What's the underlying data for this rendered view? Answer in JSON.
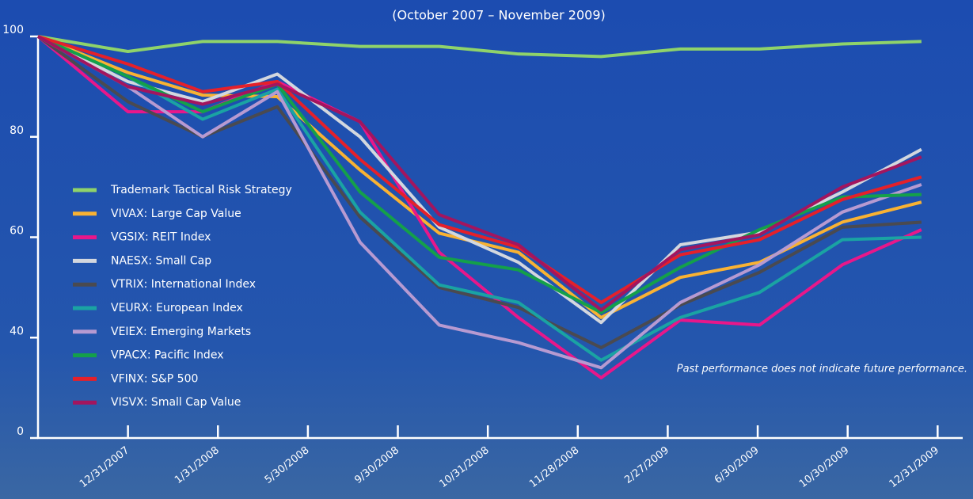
{
  "chart_data": {
    "type": "line",
    "title": "(October 2007 – November 2009)",
    "annotation": "Past performance does not indicate future performance.",
    "x": [
      0,
      1,
      1.83,
      2.66,
      3.58,
      4.46,
      5.34,
      6.26,
      7.14,
      8.02,
      8.94,
      9.82
    ],
    "xlim": [
      0,
      10.27
    ],
    "xticks": [
      {
        "value": 1,
        "label": "12/31/2007"
      },
      {
        "value": 2,
        "label": "1/31/2008"
      },
      {
        "value": 3,
        "label": "5/30/2008"
      },
      {
        "value": 4,
        "label": "9/30/2008"
      },
      {
        "value": 5,
        "label": "10/31/2008"
      },
      {
        "value": 6,
        "label": "11/28/2008"
      },
      {
        "value": 7,
        "label": "2/27/2009"
      },
      {
        "value": 8,
        "label": "6/30/2009"
      },
      {
        "value": 9,
        "label": "10/30/2009"
      },
      {
        "value": 10,
        "label": "12/31/2009"
      }
    ],
    "ylim": [
      20,
      100
    ],
    "yticks": [
      0,
      40,
      60,
      80,
      100
    ],
    "axis_break": true,
    "legend": "left",
    "series": [
      {
        "name": "Trademark Tactical Risk Strategy",
        "color": "#8fd36a",
        "values": [
          100,
          97,
          99,
          99,
          98,
          98,
          96.5,
          96,
          97.5,
          97.5,
          98.5,
          99
        ]
      },
      {
        "name": "VIVAX: Large Cap Value",
        "color": "#f9b233",
        "values": [
          100,
          92.8,
          88.3,
          88,
          73.4,
          60.8,
          57,
          44,
          52,
          55,
          63,
          67
        ]
      },
      {
        "name": "VGSIX: REIT Index",
        "color": "#e8178a",
        "values": [
          100,
          85,
          85,
          91,
          83,
          57,
          44,
          32,
          43.5,
          42.5,
          54.5,
          61.5
        ]
      },
      {
        "name": "NAESX: Small Cap",
        "color": "#d3d7de",
        "values": [
          100,
          91,
          87,
          92.5,
          80,
          62,
          55,
          43,
          58.5,
          61,
          69,
          77.5
        ]
      },
      {
        "name": "VTRIX: International Index",
        "color": "#4a4a50",
        "values": [
          100,
          87,
          80,
          86,
          64,
          50,
          46,
          38,
          46.5,
          53,
          62,
          63
        ]
      },
      {
        "name": "VEURX: European Index",
        "color": "#1aa3a3",
        "values": [
          100,
          92,
          83.5,
          89.5,
          65,
          50.5,
          47,
          35.5,
          44,
          49,
          59.5,
          60
        ]
      },
      {
        "name": "VEIEX: Emerging Markets",
        "color": "#b79ad1",
        "values": [
          100,
          90,
          80,
          89,
          59,
          42.5,
          39,
          34,
          47,
          54.5,
          65,
          70.5
        ]
      },
      {
        "name": "VPACX: Pacific Index",
        "color": "#14a04a",
        "values": [
          100,
          92,
          85,
          90.5,
          69,
          56,
          53.5,
          45,
          54,
          61.5,
          68,
          68.5
        ]
      },
      {
        "name": "VFINX: S&P 500",
        "color": "#e5202a",
        "values": [
          100,
          94.5,
          89,
          91,
          75.5,
          62.5,
          58,
          47,
          56.5,
          59.5,
          67.5,
          72
        ]
      },
      {
        "name": "VISVX: Small Cap Value",
        "color": "#a3155e",
        "values": [
          100,
          90,
          86.5,
          90.5,
          83,
          64.5,
          58.5,
          45.5,
          57.5,
          60.5,
          70,
          76
        ]
      }
    ]
  }
}
